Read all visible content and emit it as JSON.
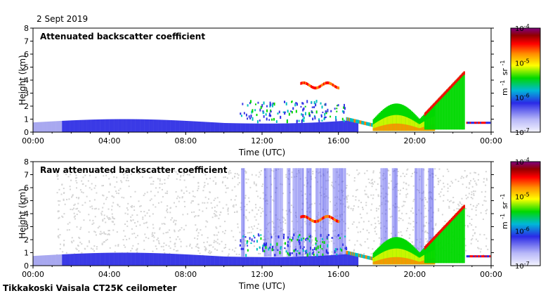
{
  "date_label": "2 Sept 2019",
  "footer_label": "Tikkakoski Vaisala CT25K ceilometer",
  "chart_data": [
    {
      "type": "heatmap",
      "title": "Attenuated backscatter coefficient",
      "xlabel": "Time (UTC)",
      "ylabel": "Height (km)",
      "xlim_hours": [
        0,
        24
      ],
      "ylim": [
        0,
        8
      ],
      "x_ticks": [
        "00:00",
        "04:00",
        "08:00",
        "12:00",
        "16:00",
        "20:00",
        "00:00"
      ],
      "y_ticks": [
        0,
        1,
        2,
        3,
        4,
        5,
        6,
        7,
        8
      ],
      "colorbar": {
        "scale": "log",
        "range": [
          1e-07,
          0.0001
        ],
        "ticks": [
          {
            "base": "10",
            "exp": "-4",
            "value": 0.0001
          },
          {
            "base": "10",
            "exp": "-5",
            "value": 1e-05
          },
          {
            "base": "10",
            "exp": "-6",
            "value": 1e-06
          },
          {
            "base": "10",
            "exp": "-7",
            "value": 1e-07
          }
        ],
        "unit_main": "m",
        "unit_exp1": "-1",
        "unit_sr": "sr",
        "unit_exp2": "-1",
        "colors": [
          "#ffffff",
          "#b8b8f8",
          "#2020e0",
          "#00c0c0",
          "#00e000",
          "#ffff00",
          "#ff8000",
          "#ff0000",
          "#800000",
          "#800080"
        ]
      }
    },
    {
      "type": "heatmap",
      "title": "Raw attenuated backscatter coefficient",
      "xlabel": "Time (UTC)",
      "ylabel": "Height (km)",
      "xlim_hours": [
        0,
        24
      ],
      "ylim": [
        0,
        8
      ],
      "x_ticks": [
        "00:00",
        "04:00",
        "08:00",
        "12:00",
        "16:00",
        "20:00",
        "00:00"
      ],
      "y_ticks": [
        0,
        1,
        2,
        3,
        4,
        5,
        6,
        7,
        8
      ],
      "colorbar": {
        "scale": "log",
        "range": [
          1e-07,
          0.0001
        ],
        "ticks": [
          {
            "base": "10",
            "exp": "-4",
            "value": 0.0001
          },
          {
            "base": "10",
            "exp": "-5",
            "value": 1e-05
          },
          {
            "base": "10",
            "exp": "-6",
            "value": 1e-06
          },
          {
            "base": "10",
            "exp": "-7",
            "value": 1e-07
          }
        ],
        "unit_main": "m",
        "unit_exp1": "-1",
        "unit_sr": "sr",
        "unit_exp2": "-1",
        "colors": [
          "#ffffff",
          "#b8b8f8",
          "#2020e0",
          "#00c0c0",
          "#00e000",
          "#ffff00",
          "#ff8000",
          "#ff0000",
          "#800000",
          "#800080"
        ]
      }
    }
  ]
}
